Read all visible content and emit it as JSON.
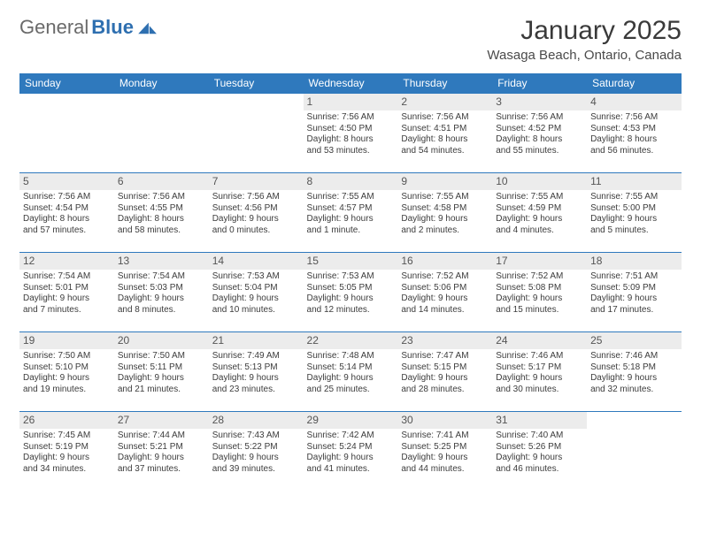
{
  "brand": {
    "part1": "General",
    "part2": "Blue"
  },
  "title": "January 2025",
  "location": "Wasaga Beach, Ontario, Canada",
  "colors": {
    "header_bg": "#2f79bd",
    "header_text": "#ffffff",
    "daynum_bg": "#ececec",
    "row_border": "#2f79bd",
    "brand_blue": "#2e6fb0",
    "brand_gray": "#6a6a6a",
    "body_text": "#3c3c3c",
    "page_bg": "#ffffff"
  },
  "typography": {
    "month_title_fontsize": 30,
    "location_fontsize": 15,
    "dayheader_fontsize": 12,
    "daynum_fontsize": 12,
    "cell_fontsize": 10
  },
  "day_headers": [
    "Sunday",
    "Monday",
    "Tuesday",
    "Wednesday",
    "Thursday",
    "Friday",
    "Saturday"
  ],
  "weeks": [
    [
      null,
      null,
      null,
      {
        "n": "1",
        "sr": "7:56 AM",
        "ss": "4:50 PM",
        "dh": "8",
        "dm": "53"
      },
      {
        "n": "2",
        "sr": "7:56 AM",
        "ss": "4:51 PM",
        "dh": "8",
        "dm": "54"
      },
      {
        "n": "3",
        "sr": "7:56 AM",
        "ss": "4:52 PM",
        "dh": "8",
        "dm": "55"
      },
      {
        "n": "4",
        "sr": "7:56 AM",
        "ss": "4:53 PM",
        "dh": "8",
        "dm": "56"
      }
    ],
    [
      {
        "n": "5",
        "sr": "7:56 AM",
        "ss": "4:54 PM",
        "dh": "8",
        "dm": "57"
      },
      {
        "n": "6",
        "sr": "7:56 AM",
        "ss": "4:55 PM",
        "dh": "8",
        "dm": "58"
      },
      {
        "n": "7",
        "sr": "7:56 AM",
        "ss": "4:56 PM",
        "dh": "9",
        "dm": "0"
      },
      {
        "n": "8",
        "sr": "7:55 AM",
        "ss": "4:57 PM",
        "dh": "9",
        "dm": "1"
      },
      {
        "n": "9",
        "sr": "7:55 AM",
        "ss": "4:58 PM",
        "dh": "9",
        "dm": "2"
      },
      {
        "n": "10",
        "sr": "7:55 AM",
        "ss": "4:59 PM",
        "dh": "9",
        "dm": "4"
      },
      {
        "n": "11",
        "sr": "7:55 AM",
        "ss": "5:00 PM",
        "dh": "9",
        "dm": "5"
      }
    ],
    [
      {
        "n": "12",
        "sr": "7:54 AM",
        "ss": "5:01 PM",
        "dh": "9",
        "dm": "7"
      },
      {
        "n": "13",
        "sr": "7:54 AM",
        "ss": "5:03 PM",
        "dh": "9",
        "dm": "8"
      },
      {
        "n": "14",
        "sr": "7:53 AM",
        "ss": "5:04 PM",
        "dh": "9",
        "dm": "10"
      },
      {
        "n": "15",
        "sr": "7:53 AM",
        "ss": "5:05 PM",
        "dh": "9",
        "dm": "12"
      },
      {
        "n": "16",
        "sr": "7:52 AM",
        "ss": "5:06 PM",
        "dh": "9",
        "dm": "14"
      },
      {
        "n": "17",
        "sr": "7:52 AM",
        "ss": "5:08 PM",
        "dh": "9",
        "dm": "15"
      },
      {
        "n": "18",
        "sr": "7:51 AM",
        "ss": "5:09 PM",
        "dh": "9",
        "dm": "17"
      }
    ],
    [
      {
        "n": "19",
        "sr": "7:50 AM",
        "ss": "5:10 PM",
        "dh": "9",
        "dm": "19"
      },
      {
        "n": "20",
        "sr": "7:50 AM",
        "ss": "5:11 PM",
        "dh": "9",
        "dm": "21"
      },
      {
        "n": "21",
        "sr": "7:49 AM",
        "ss": "5:13 PM",
        "dh": "9",
        "dm": "23"
      },
      {
        "n": "22",
        "sr": "7:48 AM",
        "ss": "5:14 PM",
        "dh": "9",
        "dm": "25"
      },
      {
        "n": "23",
        "sr": "7:47 AM",
        "ss": "5:15 PM",
        "dh": "9",
        "dm": "28"
      },
      {
        "n": "24",
        "sr": "7:46 AM",
        "ss": "5:17 PM",
        "dh": "9",
        "dm": "30"
      },
      {
        "n": "25",
        "sr": "7:46 AM",
        "ss": "5:18 PM",
        "dh": "9",
        "dm": "32"
      }
    ],
    [
      {
        "n": "26",
        "sr": "7:45 AM",
        "ss": "5:19 PM",
        "dh": "9",
        "dm": "34"
      },
      {
        "n": "27",
        "sr": "7:44 AM",
        "ss": "5:21 PM",
        "dh": "9",
        "dm": "37"
      },
      {
        "n": "28",
        "sr": "7:43 AM",
        "ss": "5:22 PM",
        "dh": "9",
        "dm": "39"
      },
      {
        "n": "29",
        "sr": "7:42 AM",
        "ss": "5:24 PM",
        "dh": "9",
        "dm": "41"
      },
      {
        "n": "30",
        "sr": "7:41 AM",
        "ss": "5:25 PM",
        "dh": "9",
        "dm": "44"
      },
      {
        "n": "31",
        "sr": "7:40 AM",
        "ss": "5:26 PM",
        "dh": "9",
        "dm": "46"
      },
      null
    ]
  ],
  "labels": {
    "sunrise_prefix": "Sunrise: ",
    "sunset_prefix": "Sunset: ",
    "daylight_prefix": "Daylight: ",
    "hours_word": " hours",
    "and_word": "and ",
    "minutes_word": " minutes.",
    "minute_word": " minute."
  }
}
